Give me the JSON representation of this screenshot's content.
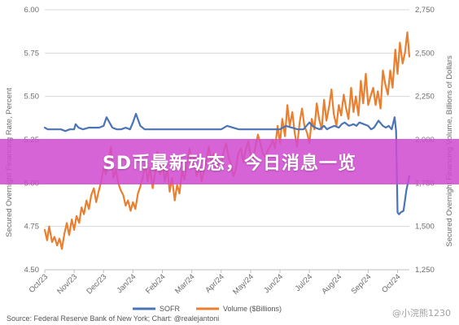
{
  "banner": {
    "title": "SD币最新动态，今日消息一览"
  },
  "watermark": {
    "text": "@小浣熊1230"
  },
  "source": "Source: Federal Reserve Bank of New York; Chart: @realejantoni",
  "chart_data": {
    "type": "line",
    "ylabel": "Secured Overnight Financing Rate, Percent",
    "y2label": "Secured Overnight Financing Volume, Billions of Dollars",
    "ylim": [
      4.5,
      6.0
    ],
    "y2lim": [
      1250,
      2750
    ],
    "yticks": [
      "4.50",
      "4.75",
      "5.00",
      "5.25",
      "5.50",
      "5.75",
      "6.00"
    ],
    "y2ticks": [
      "1,250",
      "1,500",
      "1,750",
      "2,000",
      "2,250",
      "2,500",
      "2,750"
    ],
    "xticks": [
      "Oct/23",
      "Nov/23",
      "Dec/23",
      "Jan/24",
      "Feb/24",
      "Mar/24",
      "Apr/24",
      "May/24",
      "Jun/24",
      "Jul/24",
      "Aug/24",
      "Sep/24",
      "Oct/24"
    ],
    "grid": true,
    "legend_position": "bottom",
    "series": [
      {
        "name": "SOFR",
        "axis": "left",
        "color": "#4a74b5",
        "x": [
          0,
          0.1,
          0.25,
          0.4,
          0.55,
          0.7,
          0.85,
          1.0,
          1.05,
          1.15,
          1.3,
          1.5,
          1.7,
          1.85,
          2.0,
          2.1,
          2.2,
          2.3,
          2.45,
          2.6,
          2.75,
          2.9,
          3.0,
          3.1,
          3.25,
          3.4,
          3.6,
          3.8,
          4.0,
          4.2,
          4.4,
          4.6,
          4.8,
          5.0,
          5.2,
          5.4,
          5.6,
          5.8,
          6.0,
          6.2,
          6.4,
          6.6,
          6.8,
          7.0,
          7.2,
          7.4,
          7.6,
          7.8,
          8.0,
          8.2,
          8.4,
          8.6,
          8.8,
          9.0,
          9.1,
          9.2,
          9.35,
          9.5,
          9.6,
          9.7,
          9.85,
          10.0,
          10.1,
          10.2,
          10.35,
          10.5,
          10.6,
          10.7,
          10.85,
          11.0,
          11.1,
          11.2,
          11.35,
          11.5,
          11.6,
          11.7,
          11.8,
          11.9,
          11.95,
          12.0,
          12.05,
          12.1,
          12.2,
          12.3,
          12.4
        ],
        "y": [
          5.32,
          5.31,
          5.31,
          5.31,
          5.31,
          5.3,
          5.31,
          5.31,
          5.34,
          5.32,
          5.31,
          5.32,
          5.32,
          5.32,
          5.33,
          5.38,
          5.35,
          5.32,
          5.31,
          5.31,
          5.32,
          5.31,
          5.35,
          5.4,
          5.33,
          5.31,
          5.31,
          5.31,
          5.31,
          5.31,
          5.31,
          5.31,
          5.31,
          5.31,
          5.31,
          5.31,
          5.31,
          5.31,
          5.31,
          5.33,
          5.32,
          5.31,
          5.31,
          5.31,
          5.31,
          5.31,
          5.31,
          5.31,
          5.31,
          5.33,
          5.32,
          5.31,
          5.31,
          5.35,
          5.33,
          5.32,
          5.31,
          5.33,
          5.31,
          5.32,
          5.33,
          5.32,
          5.34,
          5.35,
          5.33,
          5.34,
          5.33,
          5.35,
          5.34,
          5.33,
          5.31,
          5.32,
          5.36,
          5.33,
          5.32,
          5.33,
          5.31,
          5.38,
          5.3,
          4.83,
          4.82,
          4.83,
          4.84,
          4.96,
          5.04
        ]
      },
      {
        "name": "Volume ($Billions)",
        "axis": "right",
        "color": "#ea7f2f",
        "x": [
          0,
          0.08,
          0.15,
          0.25,
          0.33,
          0.42,
          0.5,
          0.58,
          0.67,
          0.75,
          0.83,
          0.92,
          1.0,
          1.08,
          1.17,
          1.25,
          1.33,
          1.42,
          1.5,
          1.58,
          1.67,
          1.75,
          1.83,
          1.92,
          2.0,
          2.08,
          2.17,
          2.25,
          2.33,
          2.42,
          2.5,
          2.58,
          2.67,
          2.75,
          2.83,
          2.92,
          3.0,
          3.08,
          3.17,
          3.25,
          3.33,
          3.42,
          3.5,
          3.58,
          3.67,
          3.75,
          3.83,
          3.92,
          4.0,
          4.08,
          4.17,
          4.25,
          4.33,
          4.42,
          4.5,
          4.58,
          4.67,
          4.75,
          4.83,
          4.92,
          5.0,
          5.08,
          5.17,
          5.25,
          5.33,
          5.42,
          5.5,
          5.58,
          5.67,
          5.75,
          5.83,
          5.92,
          6.0,
          6.08,
          6.17,
          6.25,
          6.33,
          6.42,
          6.5,
          6.58,
          6.67,
          6.75,
          6.83,
          6.92,
          7.0,
          7.08,
          7.17,
          7.25,
          7.33,
          7.42,
          7.5,
          7.58,
          7.67,
          7.75,
          7.83,
          7.92,
          8.0,
          8.08,
          8.17,
          8.25,
          8.33,
          8.42,
          8.5,
          8.58,
          8.67,
          8.75,
          8.83,
          8.92,
          9.0,
          9.08,
          9.17,
          9.25,
          9.33,
          9.42,
          9.5,
          9.58,
          9.67,
          9.75,
          9.83,
          9.92,
          10.0,
          10.08,
          10.17,
          10.25,
          10.33,
          10.42,
          10.5,
          10.58,
          10.67,
          10.75,
          10.83,
          10.92,
          11.0,
          11.08,
          11.17,
          11.25,
          11.33,
          11.42,
          11.5,
          11.58,
          11.67,
          11.75,
          11.83,
          11.92,
          12.0,
          12.08,
          12.17,
          12.25,
          12.33,
          12.4
        ],
        "y": [
          1480,
          1420,
          1500,
          1410,
          1440,
          1390,
          1430,
          1370,
          1460,
          1520,
          1450,
          1540,
          1480,
          1560,
          1520,
          1610,
          1570,
          1650,
          1600,
          1680,
          1720,
          1640,
          1700,
          1760,
          1840,
          1800,
          1880,
          1960,
          1780,
          1830,
          1750,
          1710,
          1680,
          1620,
          1650,
          1590,
          1640,
          1600,
          1690,
          1730,
          1780,
          1860,
          1760,
          1840,
          1720,
          1810,
          1930,
          1800,
          1880,
          1760,
          1830,
          1700,
          1780,
          1650,
          1740,
          1690,
          1820,
          1770,
          1850,
          1950,
          1840,
          1900,
          1790,
          1860,
          1760,
          1820,
          1880,
          1960,
          1870,
          1920,
          1830,
          1880,
          1850,
          1930,
          1980,
          1900,
          1860,
          1790,
          1830,
          1920,
          1950,
          1870,
          1940,
          1990,
          1910,
          1880,
          1960,
          2030,
          1980,
          1920,
          1900,
          1940,
          1960,
          2000,
          1950,
          2080,
          1980,
          2120,
          2020,
          2200,
          2080,
          2160,
          2040,
          1960,
          2100,
          2180,
          2080,
          2040,
          1980,
          2120,
          2060,
          2210,
          2120,
          2060,
          2230,
          2110,
          2190,
          2290,
          2150,
          2080,
          2200,
          2140,
          2260,
          2180,
          2120,
          2300,
          2160,
          2250,
          2140,
          2340,
          2210,
          2380,
          2200,
          2250,
          2300,
          2200,
          2280,
          2180,
          2400,
          2320,
          2260,
          2400,
          2300,
          2520,
          2380,
          2560,
          2440,
          2500,
          2620,
          2480
        ]
      }
    ]
  }
}
